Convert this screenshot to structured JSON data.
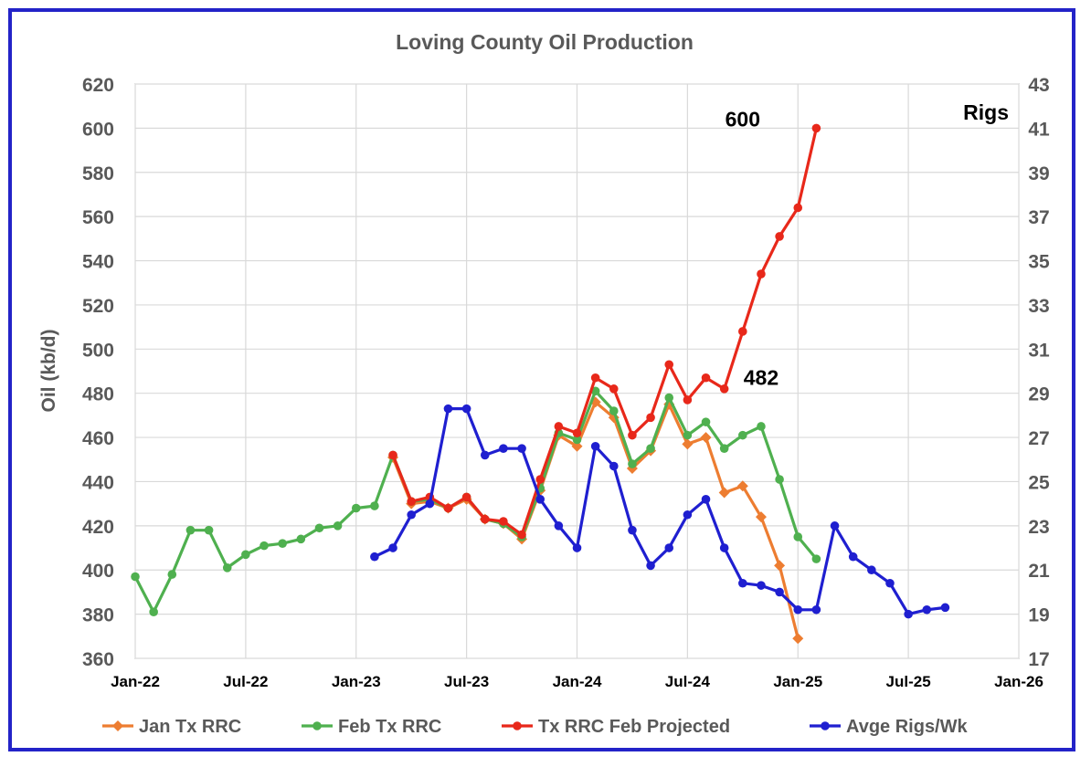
{
  "chart_data": {
    "type": "line",
    "title": "Loving County Oil Production",
    "ylabel": "Oil (kb/d)",
    "y2label": "Rigs",
    "ylim": [
      360,
      620
    ],
    "y2lim": [
      17,
      43
    ],
    "yticks": [
      "360",
      "380",
      "400",
      "420",
      "440",
      "460",
      "480",
      "500",
      "520",
      "540",
      "560",
      "580",
      "600",
      "620"
    ],
    "y2ticks": [
      "17",
      "19",
      "21",
      "23",
      "25",
      "27",
      "29",
      "31",
      "33",
      "35",
      "37",
      "39",
      "41",
      "43"
    ],
    "xticks": [
      "Jan-22",
      "Jul-22",
      "Jan-23",
      "Jul-23",
      "Jan-24",
      "Jul-24",
      "Jan-25",
      "Jul-25",
      "Jan-26"
    ],
    "xlim": [
      "2022-01",
      "2026-01"
    ],
    "grid": true,
    "legend_position": "bottom",
    "annotations": [
      {
        "text": "600",
        "x": "2024-10",
        "y": 600
      },
      {
        "text": "482",
        "x": "2024-11",
        "y": 483
      }
    ],
    "series": [
      {
        "name": "Jan Tx RRC",
        "color": "#ed7d31",
        "marker": "diamond",
        "axis": "left",
        "x": [
          "2023-03",
          "2023-04",
          "2023-05",
          "2023-06",
          "2023-07",
          "2023-08",
          "2023-09",
          "2023-10",
          "2023-11",
          "2023-12",
          "2024-01",
          "2024-02",
          "2024-03",
          "2024-04",
          "2024-05",
          "2024-06",
          "2024-07",
          "2024-08",
          "2024-09",
          "2024-10",
          "2024-11",
          "2024-12",
          "2025-01"
        ],
        "values": [
          451,
          430,
          431,
          428,
          432,
          423,
          421,
          414,
          436,
          461,
          456,
          476,
          469,
          446,
          454,
          475,
          457,
          460,
          435,
          438,
          424,
          402,
          369
        ]
      },
      {
        "name": "Feb Tx RRC",
        "color": "#4fb04f",
        "marker": "circle",
        "axis": "left",
        "x": [
          "2022-01",
          "2022-02",
          "2022-03",
          "2022-04",
          "2022-05",
          "2022-06",
          "2022-07",
          "2022-08",
          "2022-09",
          "2022-10",
          "2022-11",
          "2022-12",
          "2023-01",
          "2023-02",
          "2023-03",
          "2023-04",
          "2023-05",
          "2023-06",
          "2023-07",
          "2023-08",
          "2023-09",
          "2023-10",
          "2023-11",
          "2023-12",
          "2024-01",
          "2024-02",
          "2024-03",
          "2024-04",
          "2024-05",
          "2024-06",
          "2024-07",
          "2024-08",
          "2024-09",
          "2024-10",
          "2024-11",
          "2024-12",
          "2025-01",
          "2025-02"
        ],
        "values": [
          397,
          381,
          398,
          418,
          418,
          401,
          407,
          411,
          412,
          414,
          419,
          420,
          428,
          429,
          452,
          431,
          432,
          428,
          433,
          423,
          421,
          415,
          437,
          462,
          459,
          481,
          472,
          448,
          455,
          478,
          461,
          467,
          455,
          461,
          465,
          441,
          415,
          405
        ]
      },
      {
        "name": "Tx RRC Feb Projected",
        "color": "#e8281a",
        "marker": "circle",
        "axis": "left",
        "x": [
          "2023-03",
          "2023-04",
          "2023-05",
          "2023-06",
          "2023-07",
          "2023-08",
          "2023-09",
          "2023-10",
          "2023-11",
          "2023-12",
          "2024-01",
          "2024-02",
          "2024-03",
          "2024-04",
          "2024-05",
          "2024-06",
          "2024-07",
          "2024-08",
          "2024-09",
          "2024-10",
          "2024-11",
          "2024-12",
          "2025-01",
          "2025-02"
        ],
        "values": [
          452,
          431,
          433,
          428,
          433,
          423,
          422,
          416,
          441,
          465,
          462,
          487,
          482,
          461,
          469,
          493,
          477,
          487,
          482,
          508,
          534,
          551,
          564,
          600
        ]
      },
      {
        "name": "Avge Rigs/Wk",
        "color": "#1f1fd0",
        "marker": "circle",
        "axis": "right",
        "x": [
          "2023-02",
          "2023-03",
          "2023-04",
          "2023-05",
          "2023-06",
          "2023-07",
          "2023-08",
          "2023-09",
          "2023-10",
          "2023-11",
          "2023-12",
          "2024-01",
          "2024-02",
          "2024-03",
          "2024-04",
          "2024-05",
          "2024-06",
          "2024-07",
          "2024-08",
          "2024-09",
          "2024-10",
          "2024-11",
          "2024-12",
          "2025-01",
          "2025-02",
          "2025-03",
          "2025-04",
          "2025-05",
          "2025-06",
          "2025-07",
          "2025-08",
          "2025-09"
        ],
        "values": [
          21.6,
          22.0,
          23.5,
          24.0,
          28.3,
          28.3,
          26.2,
          26.5,
          26.5,
          24.2,
          23.0,
          22.0,
          26.6,
          25.7,
          22.8,
          21.2,
          22.0,
          23.5,
          24.2,
          22.0,
          20.4,
          20.3,
          20.0,
          19.2,
          19.2,
          23.0,
          21.6,
          21.0,
          20.4,
          19.0,
          19.2,
          19.3
        ]
      }
    ]
  }
}
